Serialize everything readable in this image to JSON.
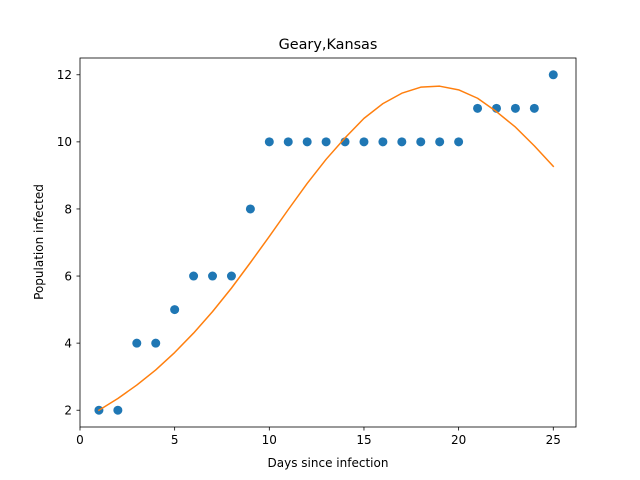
{
  "chart_data": {
    "type": "scatter",
    "title": "Geary,Kansas",
    "xlabel": "Days since infection",
    "ylabel": "Population infected",
    "xlim": [
      0,
      26.2
    ],
    "ylim": [
      1.5,
      12.5
    ],
    "xticks": [
      0,
      5,
      10,
      15,
      20,
      25
    ],
    "yticks": [
      2,
      4,
      6,
      8,
      10,
      12
    ],
    "grid": false,
    "series": [
      {
        "kind": "scatter",
        "color": "#1f77b4",
        "x": [
          1,
          2,
          3,
          4,
          5,
          6,
          7,
          8,
          9,
          10,
          11,
          12,
          13,
          14,
          15,
          16,
          17,
          18,
          19,
          20,
          21,
          22,
          23,
          24,
          25
        ],
        "y": [
          2,
          2,
          4,
          4,
          5,
          6,
          6,
          6,
          8,
          10,
          10,
          10,
          10,
          10,
          10,
          10,
          10,
          10,
          10,
          10,
          11,
          11,
          11,
          11,
          12
        ]
      },
      {
        "kind": "line",
        "color": "#ff7f0e",
        "x": [
          1,
          2,
          3,
          4,
          5,
          6,
          7,
          8,
          9,
          10,
          11,
          12,
          13,
          14,
          15,
          16,
          17,
          18,
          19,
          20,
          21,
          22,
          23,
          24,
          25
        ],
        "y": [
          2.0,
          2.35,
          2.75,
          3.2,
          3.72,
          4.3,
          4.94,
          5.64,
          6.4,
          7.18,
          7.98,
          8.76,
          9.48,
          10.12,
          10.7,
          11.14,
          11.45,
          11.63,
          11.66,
          11.55,
          11.3,
          10.9,
          10.44,
          9.88,
          9.27
        ]
      }
    ]
  }
}
